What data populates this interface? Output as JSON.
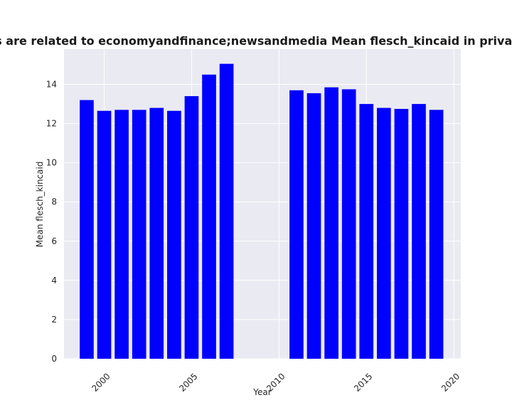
{
  "chart_data": {
    "type": "bar",
    "title": "Categories are related to economyandfinance;newsandmedia Mean flesch_kincaid in privacy policies",
    "xlabel": "Year",
    "ylabel": "Mean flesch_kincaid",
    "x": [
      1999,
      2000,
      2001,
      2002,
      2003,
      2004,
      2005,
      2006,
      2007,
      2011,
      2012,
      2013,
      2014,
      2015,
      2016,
      2017,
      2018,
      2019
    ],
    "values": [
      13.2,
      12.65,
      12.7,
      12.7,
      12.8,
      12.65,
      13.4,
      14.5,
      15.05,
      13.7,
      13.55,
      13.85,
      13.75,
      13.0,
      12.8,
      12.75,
      13.0,
      12.7
    ],
    "xlim": [
      1997.7,
      2020.4
    ],
    "ylim": [
      0,
      15.8
    ],
    "xticks": [
      2000,
      2005,
      2010,
      2015,
      2020
    ],
    "yticks": [
      0,
      2,
      4,
      6,
      8,
      10,
      12,
      14
    ],
    "bar_color": "#0000ff",
    "background_color": "#eaeaf2",
    "grid": true
  }
}
